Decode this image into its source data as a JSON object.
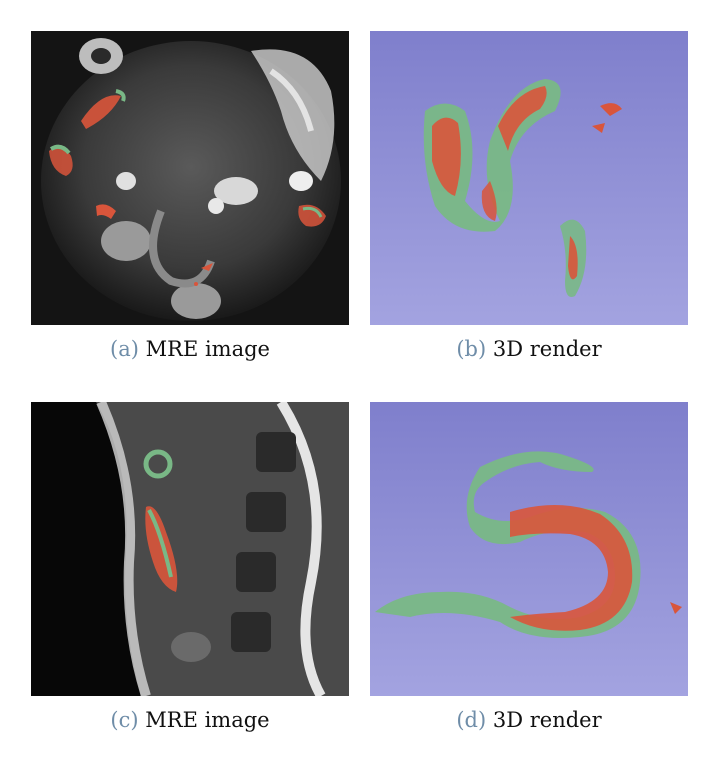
{
  "figure": {
    "panels": [
      {
        "tag": "(a)",
        "label": "MRE image"
      },
      {
        "tag": "(b)",
        "label": "3D render"
      },
      {
        "tag": "(c)",
        "label": "MRE image"
      },
      {
        "tag": "(d)",
        "label": "3D render"
      }
    ]
  },
  "colors": {
    "segmentation_red": "#d9553b",
    "segmentation_green": "#79b886",
    "render_background": "#8f8fd6",
    "caption_tag": "#6f8da8"
  }
}
